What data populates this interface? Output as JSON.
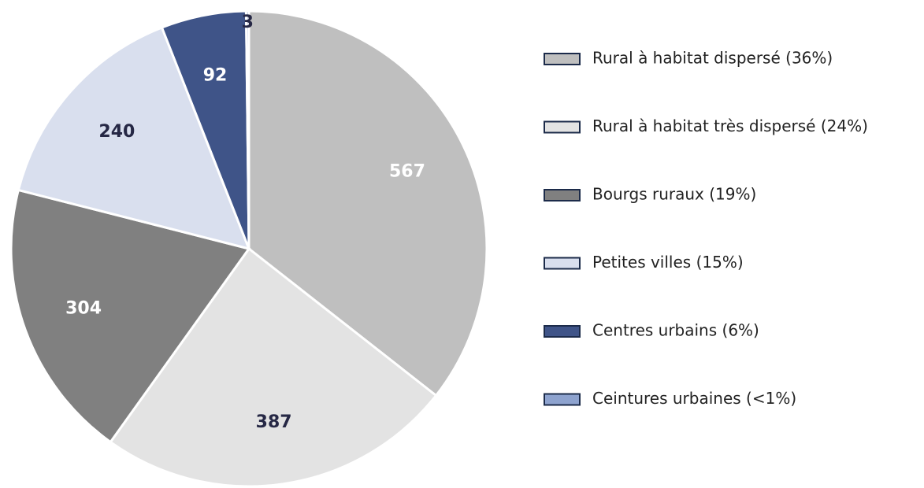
{
  "chart_data": {
    "type": "pie",
    "categories": [
      "Rural à habitat dispersé (36%)",
      "Rural à habitat très dispersé (24%)",
      "Bourgs ruraux (19%)",
      "Petites villes (15%)",
      "Centres urbains (6%)",
      "Ceintures urbaines (<1%)"
    ],
    "values": [
      567,
      387,
      304,
      240,
      92,
      3
    ],
    "colors": [
      "#bfbfbf",
      "#e3e3e3",
      "#808080",
      "#d9dfee",
      "#3f5488",
      "#8ea3cf"
    ],
    "label_colors": [
      "#ffffff",
      "#262845",
      "#ffffff",
      "#262845",
      "#ffffff",
      "#262845"
    ],
    "start_angle": 0,
    "direction": "clockwise",
    "legend": "right"
  }
}
